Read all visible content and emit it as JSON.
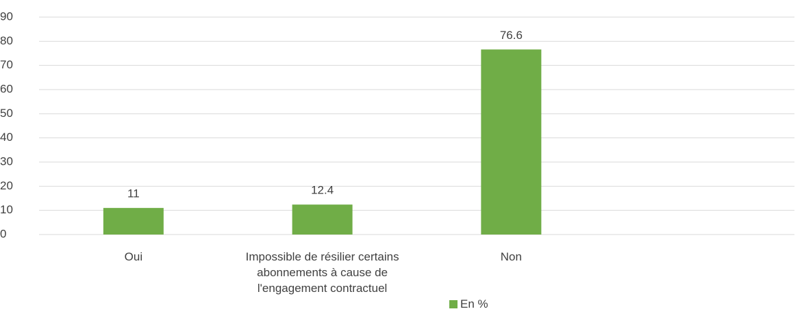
{
  "chart_data": {
    "type": "bar",
    "categories": [
      "Oui",
      "Impossible de résilier certains abonnements à cause de l'engagement contractuel",
      "Non",
      null
    ],
    "series": [
      {
        "name": "En %",
        "color": "#70ad47",
        "values": [
          11,
          12.4,
          76.6,
          null
        ]
      }
    ],
    "ylim": [
      0,
      90
    ],
    "yticks": [
      0,
      10,
      20,
      30,
      40,
      50,
      60,
      70,
      80,
      90
    ],
    "grid": true,
    "legend": "bottom"
  }
}
